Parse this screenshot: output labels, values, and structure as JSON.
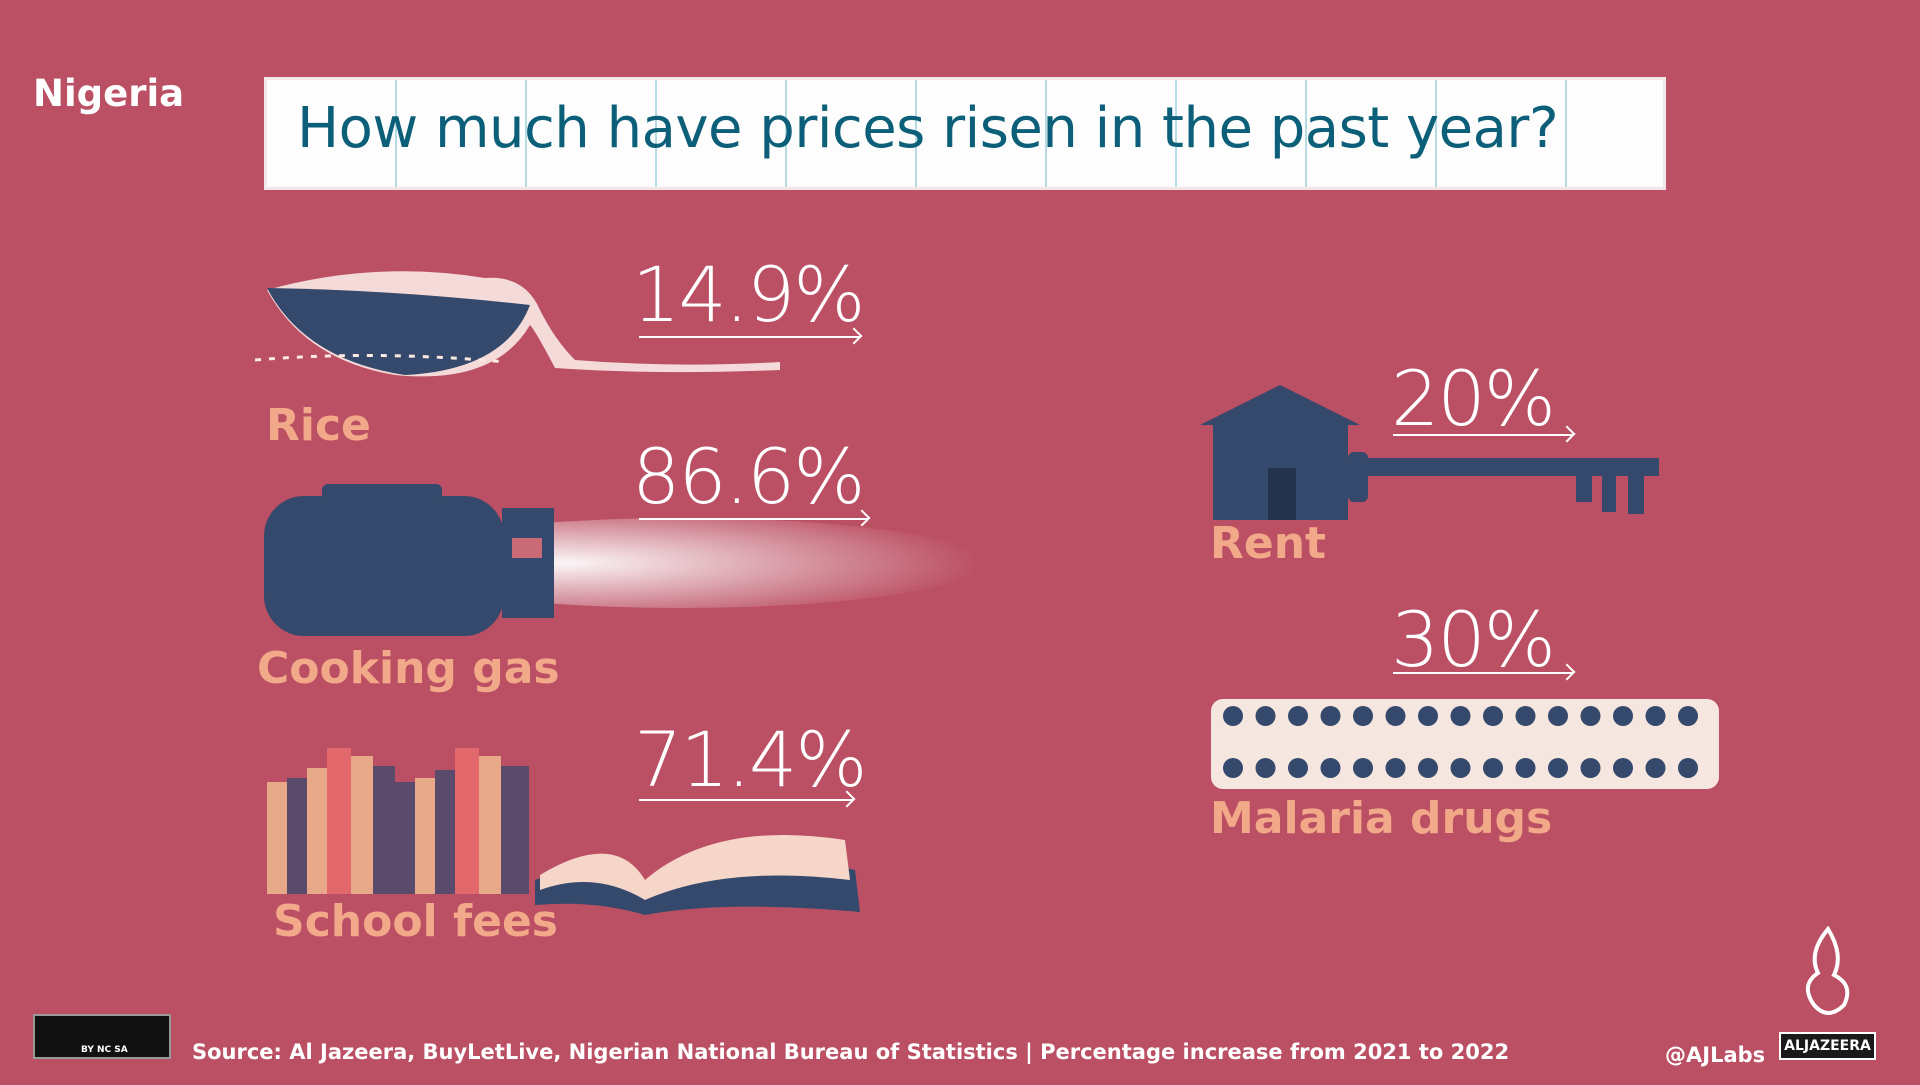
{
  "header": {
    "country": "Nigeria",
    "title": "How much have prices risen in the past year?"
  },
  "items": [
    {
      "label": "Rice",
      "percent": "14.9%",
      "icon": "rice-bowl-icon"
    },
    {
      "label": "Cooking gas",
      "percent": "86.6%",
      "icon": "gas-cylinder-icon"
    },
    {
      "label": "School fees",
      "percent": "71.4%",
      "icon": "books-icon"
    },
    {
      "label": "Rent",
      "percent": "20%",
      "icon": "house-key-icon"
    },
    {
      "label": "Malaria drugs",
      "percent": "30%",
      "icon": "pill-pack-icon"
    }
  ],
  "footer": {
    "source": "Source: Al Jazeera, BuyLetLive, Nigerian National Bureau of Statistics | Percentage increase from 2021 to 2022",
    "handle": "@AJLabs",
    "logo": "ALJAZEERA",
    "license": "BY NC SA"
  },
  "colors": {
    "background": "#bb4f63",
    "label": "#f2a98a",
    "icon": "#34496b",
    "title": "#0c5f79"
  }
}
